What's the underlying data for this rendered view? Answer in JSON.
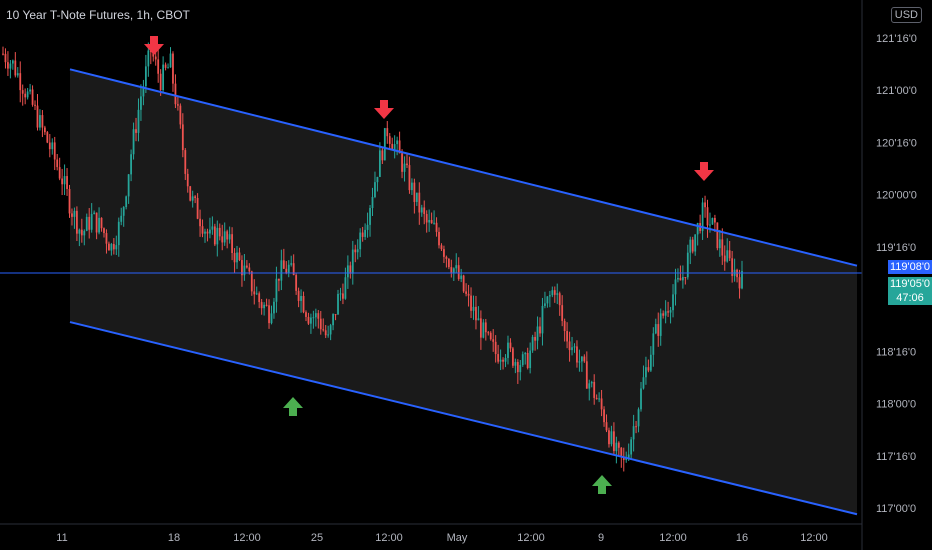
{
  "header": {
    "symbol_title": "10 Year T-Note Futures, 1h, CBOT",
    "currency": "USD"
  },
  "price_tags": {
    "level_label": "119'08'0",
    "last_price": "119'05'0",
    "countdown": "47:06"
  },
  "colors": {
    "up": "#26a69a",
    "down": "#ef5350",
    "channel": "#2962ff",
    "level_line": "#2962ff",
    "arrow_down": "#f23645",
    "arrow_up": "#4caf50"
  },
  "chart_data": {
    "type": "candlestick",
    "y_ticks": [
      "121'16'0",
      "121'00'0",
      "120'16'0",
      "120'00'0",
      "119'16'0",
      "118'16'0",
      "118'00'0",
      "117'16'0",
      "117'00'0"
    ],
    "x_ticks": [
      "11",
      "18",
      "12:00",
      "25",
      "12:00",
      "May",
      "12:00",
      "9",
      "12:00",
      "16",
      "12:00"
    ],
    "horizontal_level": "119'08'0",
    "last_price": "119'05'0",
    "channel": {
      "upper": {
        "start": {
          "date": "Apr 11",
          "price": 121.2
        },
        "end": {
          "date": "May 19",
          "price": 119.32
        }
      },
      "lower": {
        "start": {
          "date": "Apr 11",
          "price": 118.78
        },
        "end": {
          "date": "May 19",
          "price": 116.94
        }
      }
    },
    "annotations": [
      {
        "type": "arrow-down",
        "note": "upper channel touch",
        "date": "Apr 15"
      },
      {
        "type": "arrow-down",
        "note": "upper channel touch",
        "date": "Apr 26"
      },
      {
        "type": "arrow-down",
        "note": "upper channel touch",
        "date": "May 12"
      },
      {
        "type": "arrow-up",
        "note": "lower channel touch",
        "date": "Apr 21"
      },
      {
        "type": "arrow-up",
        "note": "lower channel touch",
        "date": "May 9"
      }
    ],
    "closes": [
      121.35,
      121.25,
      121.05,
      120.85,
      120.62,
      120.4,
      120.15,
      119.85,
      119.62,
      119.78,
      119.68,
      119.5,
      119.75,
      120.4,
      120.95,
      121.38,
      121.1,
      121.25,
      120.6,
      119.98,
      119.78,
      119.58,
      119.65,
      119.52,
      119.35,
      119.18,
      118.98,
      118.88,
      119.25,
      119.3,
      119.08,
      118.85,
      118.82,
      118.6,
      119.0,
      119.22,
      119.55,
      119.82,
      120.25,
      120.62,
      120.42,
      120.18,
      119.92,
      119.72,
      119.65,
      119.42,
      119.25,
      119.02,
      118.82,
      118.62,
      118.48,
      118.52,
      118.42,
      118.38,
      118.6,
      118.92,
      119.12,
      118.68,
      118.52,
      118.3,
      118.1,
      117.88,
      117.55,
      117.42,
      117.78,
      118.22,
      118.62,
      118.85,
      119.05,
      119.22,
      119.55,
      119.82,
      119.7,
      119.45,
      119.3,
      119.18
    ]
  }
}
